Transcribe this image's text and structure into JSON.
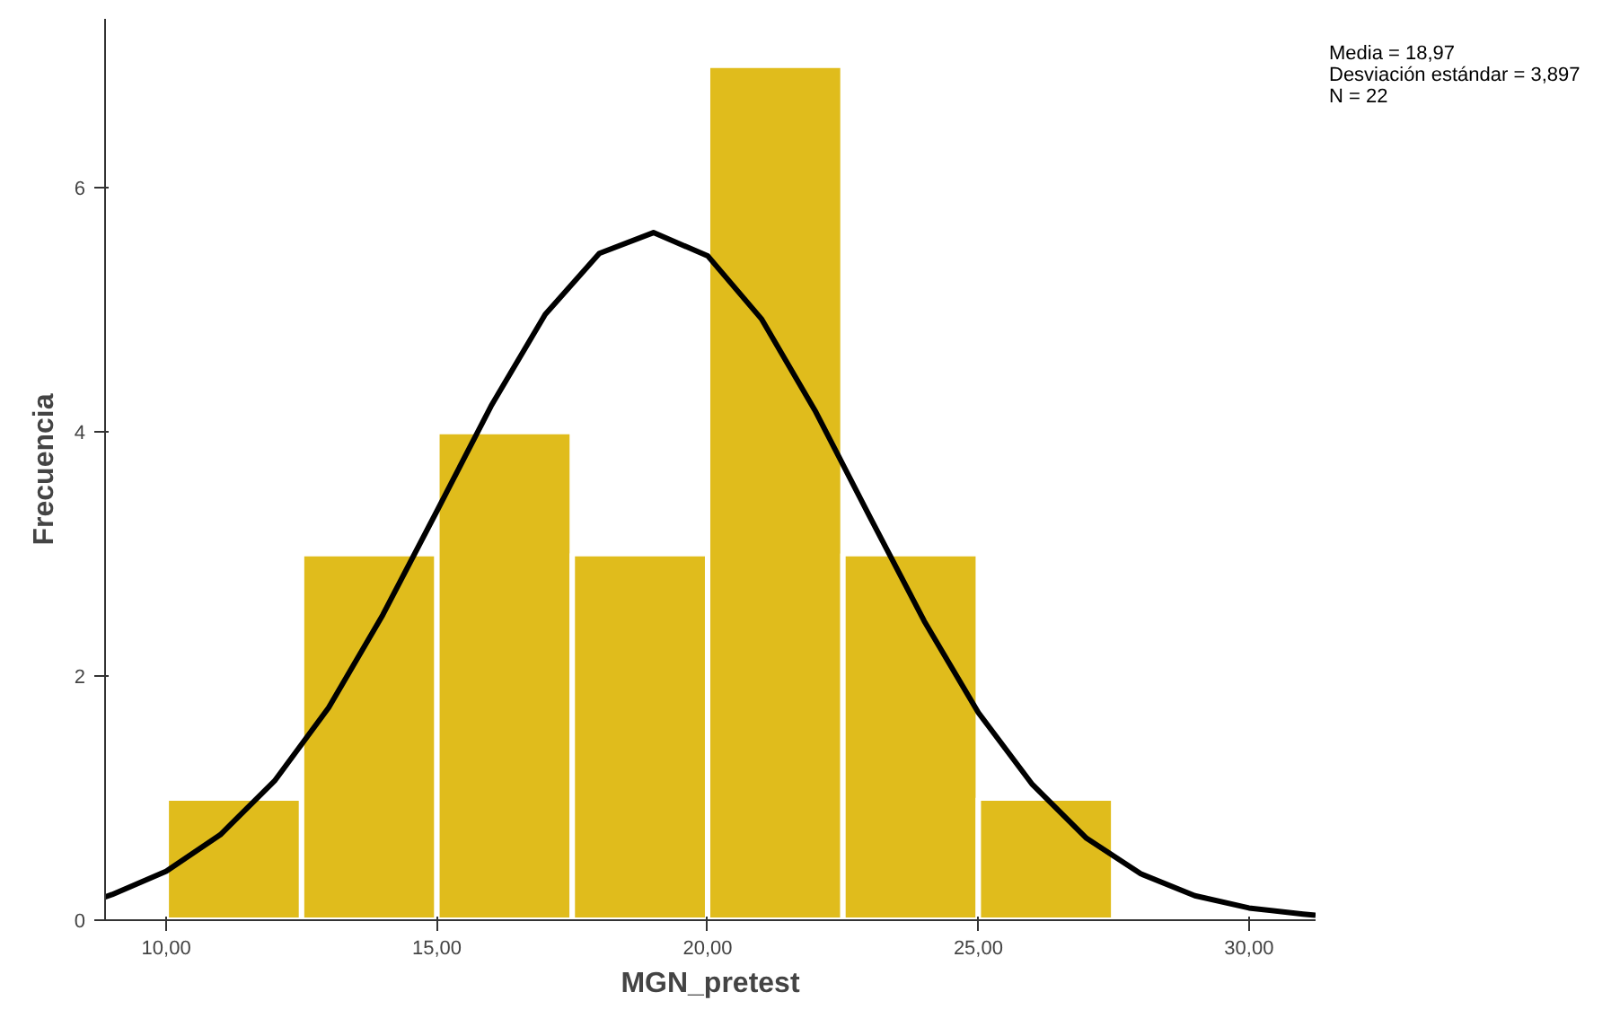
{
  "chart_data": {
    "type": "histogram",
    "xlabel": "MGN_pretest",
    "ylabel": "Frecuencia",
    "bins": [
      10,
      12.5,
      15,
      17.5,
      20,
      22.5,
      25,
      27.5
    ],
    "values": [
      1,
      3,
      4,
      3,
      7,
      3,
      1
    ],
    "color": "#e0bc1c",
    "series": [
      {
        "type": "line",
        "color": "#000000",
        "x": [
          8.87,
          9,
          10,
          11,
          12,
          13,
          14,
          15,
          16,
          17,
          18,
          19,
          20,
          21,
          22,
          23,
          24,
          25,
          26,
          27,
          28,
          29,
          30,
          31,
          31.23
        ],
        "values": [
          0.19,
          0.21,
          0.4,
          0.7,
          1.14,
          1.74,
          2.5,
          3.35,
          4.21,
          4.96,
          5.46,
          5.63,
          5.44,
          4.92,
          4.16,
          3.3,
          2.45,
          1.7,
          1.11,
          0.67,
          0.38,
          0.2,
          0.1,
          0.05,
          0.04
        ]
      }
    ],
    "xlim": [
      8.87,
      31.23
    ],
    "ylim": [
      0,
      7.38
    ],
    "xticks": [
      {
        "value": 10,
        "label": "10,00"
      },
      {
        "value": 15,
        "label": "15,00"
      },
      {
        "value": 20,
        "label": "20,00"
      },
      {
        "value": 25,
        "label": "25,00"
      },
      {
        "value": 30,
        "label": "30,00"
      }
    ],
    "yticks": [
      0,
      2,
      4,
      6
    ],
    "grid": false,
    "annotations": [
      "Media = 18,97",
      "Desviación estándar = 3,897",
      "N = 22"
    ]
  }
}
